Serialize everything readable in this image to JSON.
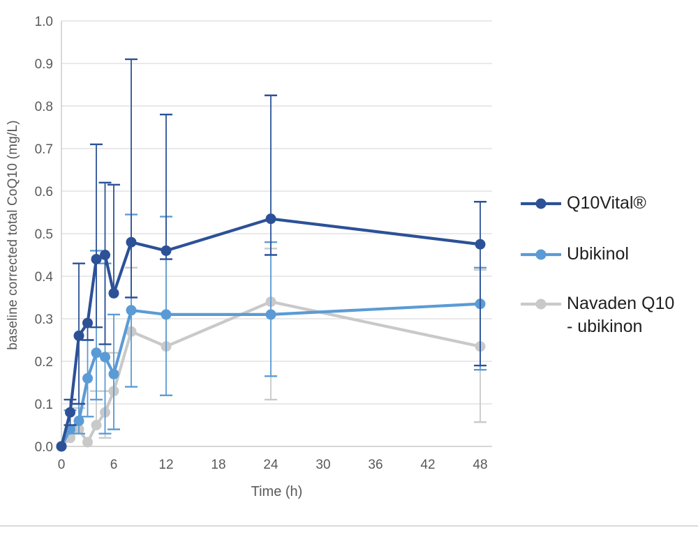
{
  "page": {
    "background": "#ffffff",
    "divider_color": "#dadada"
  },
  "chart_data": {
    "type": "line",
    "title": "",
    "ylabel": "baseline corrected total CoQ10 (mg/L)",
    "xlabel": "Time (h)",
    "ylim": [
      0.0,
      1.0
    ],
    "y_tick_step": 0.1,
    "y_tick_labels": [
      "0.0",
      "0.1",
      "0.2",
      "0.3",
      "0.4",
      "0.5",
      "0.6",
      "0.7",
      "0.8",
      "0.9",
      "1.0"
    ],
    "x_ticks": [
      0,
      6,
      12,
      18,
      24,
      30,
      36,
      42,
      48
    ],
    "grid": "horizontal-only",
    "legend_position": "right",
    "axis_color": "#c9c9c9",
    "grid_color": "#dcdcdc",
    "tick_label_color": "#595959",
    "legend_text_color": "#1f1f1f",
    "x": [
      0,
      1,
      2,
      3,
      4,
      5,
      6,
      8,
      12,
      24,
      48
    ],
    "series": [
      {
        "name": "Q10Vital®",
        "legend_lines": [
          "Q10Vital®"
        ],
        "color": "#2c5197",
        "values": [
          0.0,
          0.08,
          0.26,
          0.29,
          0.44,
          0.45,
          0.36,
          0.48,
          0.46,
          0.535,
          0.475
        ],
        "err_hi": [
          null,
          0.11,
          0.43,
          null,
          0.71,
          0.62,
          0.615,
          0.91,
          0.78,
          0.825,
          0.575
        ],
        "err_lo": [
          null,
          0.05,
          0.1,
          0.25,
          0.28,
          0.24,
          null,
          0.35,
          0.44,
          0.45,
          0.19
        ]
      },
      {
        "name": "Ubikinol",
        "legend_lines": [
          "Ubikinol"
        ],
        "color": "#5b9bd5",
        "values": [
          0.0,
          0.04,
          0.06,
          0.16,
          0.22,
          0.21,
          0.17,
          0.32,
          0.31,
          0.31,
          0.335
        ],
        "err_hi": [
          null,
          0.085,
          0.1,
          0.25,
          0.46,
          0.43,
          0.31,
          0.545,
          0.54,
          0.48,
          0.42
        ],
        "err_lo": [
          null,
          null,
          0.03,
          0.07,
          0.11,
          0.03,
          0.04,
          0.14,
          0.12,
          0.165,
          0.18
        ]
      },
      {
        "name": "Navaden Q10 - ubikinon",
        "legend_lines": [
          "Navaden Q10",
          "- ubikinon"
        ],
        "color": "#c9c9c9",
        "values": [
          0.0,
          0.02,
          0.04,
          0.01,
          0.05,
          0.08,
          0.13,
          0.27,
          0.235,
          0.34,
          0.235
        ],
        "err_hi": [
          null,
          null,
          0.09,
          null,
          0.13,
          0.13,
          0.22,
          0.42,
          0.44,
          0.465,
          0.415
        ],
        "err_lo": [
          null,
          null,
          null,
          null,
          null,
          0.02,
          0.04,
          null,
          null,
          0.11,
          0.057
        ]
      }
    ]
  }
}
